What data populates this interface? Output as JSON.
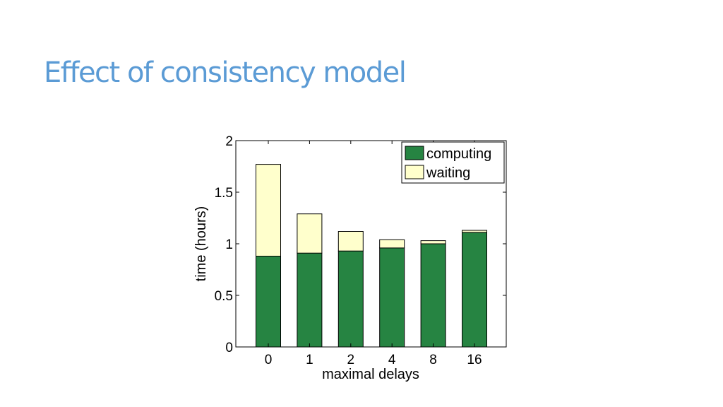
{
  "slide": {
    "title": "Effect of consistency model"
  },
  "chart_data": {
    "type": "bar",
    "stacked": true,
    "categories": [
      "0",
      "1",
      "2",
      "4",
      "8",
      "16"
    ],
    "series": [
      {
        "name": "computing",
        "values": [
          0.88,
          0.91,
          0.93,
          0.96,
          1.0,
          1.11
        ],
        "color": "#268442"
      },
      {
        "name": "waiting",
        "values": [
          0.89,
          0.38,
          0.19,
          0.08,
          0.03,
          0.02
        ],
        "color": "#ffffcc"
      }
    ],
    "xlabel": "maximal delays",
    "ylabel": "time (hours)",
    "ylim": [
      0,
      2
    ],
    "yticks": [
      0,
      0.5,
      1,
      1.5,
      2
    ],
    "ytick_labels": [
      "0",
      "0.5",
      "1",
      "1.5",
      "2"
    ],
    "legend_position": "top-right",
    "grid": false
  }
}
